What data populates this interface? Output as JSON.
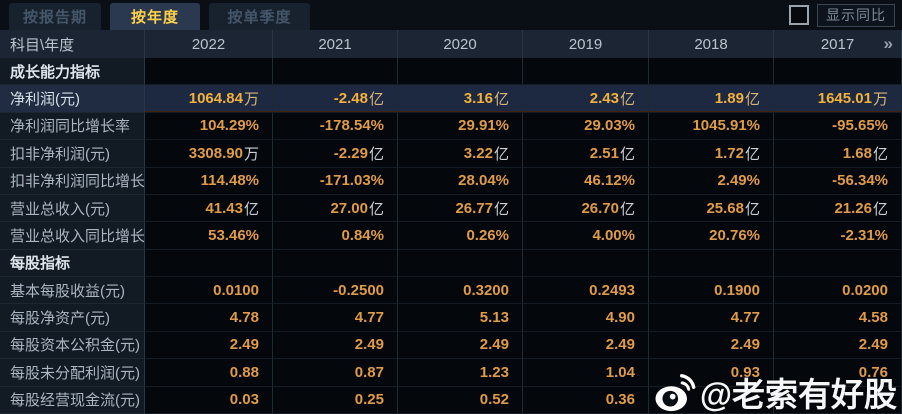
{
  "tabs": [
    {
      "label": "按报告期",
      "active": false
    },
    {
      "label": "按年度",
      "active": true
    },
    {
      "label": "按单季度",
      "active": false
    }
  ],
  "controls": {
    "show_yoy_label": "显示同比",
    "checkbox_checked": false
  },
  "table": {
    "corner_header": "科目\\年度",
    "year_columns": [
      "2022",
      "2021",
      "2020",
      "2019",
      "2018",
      "2017"
    ],
    "more_indicator": "»",
    "rows": [
      {
        "type": "section",
        "label": "成长能力指标",
        "values": [
          "",
          "",
          "",
          "",
          "",
          ""
        ]
      },
      {
        "type": "data",
        "highlight": true,
        "label": "净利润(元)",
        "values": [
          "1064.84万",
          "-2.48亿",
          "3.16亿",
          "2.43亿",
          "1.89亿",
          "1645.01万"
        ]
      },
      {
        "type": "data",
        "label": "净利润同比增长率",
        "values": [
          "104.29%",
          "-178.54%",
          "29.91%",
          "29.03%",
          "1045.91%",
          "-95.65%"
        ]
      },
      {
        "type": "data",
        "label": "扣非净利润(元)",
        "values": [
          "3308.90万",
          "-2.29亿",
          "3.22亿",
          "2.51亿",
          "1.72亿",
          "1.68亿"
        ]
      },
      {
        "type": "data",
        "label": "扣非净利润同比增长率",
        "values": [
          "114.48%",
          "-171.03%",
          "28.04%",
          "46.12%",
          "2.49%",
          "-56.34%"
        ]
      },
      {
        "type": "data",
        "label": "营业总收入(元)",
        "values": [
          "41.43亿",
          "27.00亿",
          "26.77亿",
          "26.70亿",
          "25.68亿",
          "21.26亿"
        ]
      },
      {
        "type": "data",
        "label": "营业总收入同比增长率",
        "values": [
          "53.46%",
          "0.84%",
          "0.26%",
          "4.00%",
          "20.76%",
          "-2.31%"
        ]
      },
      {
        "type": "section",
        "label": "每股指标",
        "values": [
          "",
          "",
          "",
          "",
          "",
          ""
        ]
      },
      {
        "type": "data",
        "label": "基本每股收益(元)",
        "values": [
          "0.0100",
          "-0.2500",
          "0.3200",
          "0.2493",
          "0.1900",
          "0.0200"
        ]
      },
      {
        "type": "data",
        "label": "每股净资产(元)",
        "values": [
          "4.78",
          "4.77",
          "5.13",
          "4.90",
          "4.77",
          "4.58"
        ]
      },
      {
        "type": "data",
        "label": "每股资本公积金(元)",
        "values": [
          "2.49",
          "2.49",
          "2.49",
          "2.49",
          "2.49",
          "2.49"
        ]
      },
      {
        "type": "data",
        "label": "每股未分配利润(元)",
        "values": [
          "0.88",
          "0.87",
          "1.23",
          "1.04",
          "0.93",
          "0.76"
        ]
      },
      {
        "type": "data",
        "label": "每股经营现金流(元)",
        "values": [
          "0.03",
          "0.25",
          "0.52",
          "0.36",
          "",
          ""
        ]
      }
    ]
  },
  "watermark": {
    "text": "@老索有好股",
    "icon": "weibo-icon"
  },
  "colors": {
    "accent_gold": "#ffd24a",
    "value_orange": "#e09b48",
    "highlight_row_bg": "#1c2940",
    "header_bg": "#1b2533",
    "label_col_bg": "#121a24"
  }
}
